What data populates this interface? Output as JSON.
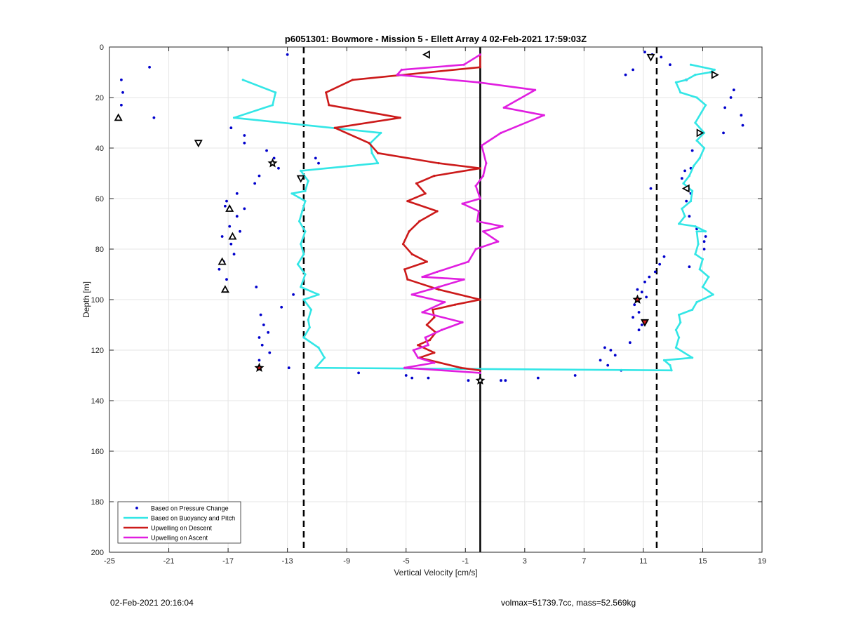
{
  "footer": {
    "timestamp": "02-Feb-2021 20:16:04",
    "mass_info": "volmax=51739.7cc, mass=52.569kg"
  },
  "colors": {
    "pressure": "#0000cc",
    "buoyancy": "#33e6e6",
    "descent": "#cc1a1a",
    "ascent": "#e01ee0",
    "grid": "#e6e6e6",
    "reference": "#000000"
  },
  "chart_data": {
    "type": "line",
    "title": "p6051301: Bowmore - Mission 5 - Ellett Array 4 02-Feb-2021 17:59:03Z",
    "xlabel": "Vertical Velocity [cm/s]",
    "ylabel": "Depth [m]",
    "xlim": [
      -25,
      19
    ],
    "ylim": [
      0,
      200
    ],
    "y_reversed": true,
    "grid": true,
    "legend_position": "bottom-left",
    "xticks": [
      -25,
      -21,
      -17,
      -13,
      -9,
      -5,
      -1,
      3,
      7,
      11,
      15,
      19
    ],
    "yticks": [
      0,
      20,
      40,
      60,
      80,
      100,
      120,
      140,
      160,
      180,
      200
    ],
    "reference_lines": [
      {
        "x": 0,
        "style": "solid"
      },
      {
        "x": -11.9,
        "style": "dashed"
      },
      {
        "x": 11.9,
        "style": "dashed"
      }
    ],
    "series": [
      {
        "name": "Based on Pressure Change",
        "kind": "scatter",
        "points": [
          [
            -13,
            3
          ],
          [
            -22.3,
            8
          ],
          [
            -24.2,
            13
          ],
          [
            -24.1,
            18
          ],
          [
            -24.2,
            23
          ],
          [
            -22,
            28
          ],
          [
            -16.8,
            32
          ],
          [
            -15.9,
            35
          ],
          [
            -15.9,
            38
          ],
          [
            -14.4,
            41
          ],
          [
            -13.9,
            44
          ],
          [
            -13.6,
            48
          ],
          [
            -14.9,
            51
          ],
          [
            -15.2,
            54
          ],
          [
            -16.4,
            58
          ],
          [
            -17.1,
            61
          ],
          [
            -17.2,
            63
          ],
          [
            -15.9,
            64
          ],
          [
            -16.4,
            67
          ],
          [
            -16.9,
            71
          ],
          [
            -17.4,
            75
          ],
          [
            -16.2,
            73
          ],
          [
            -16.8,
            78
          ],
          [
            -16.6,
            82
          ],
          [
            -17.3,
            85
          ],
          [
            -17.6,
            88
          ],
          [
            -17.1,
            92
          ],
          [
            -15.1,
            95
          ],
          [
            -12.6,
            98
          ],
          [
            -13.4,
            103
          ],
          [
            -14.8,
            106
          ],
          [
            -14.6,
            110
          ],
          [
            -14.3,
            113
          ],
          [
            -14.9,
            115
          ],
          [
            -14.7,
            118
          ],
          [
            -14.2,
            121
          ],
          [
            -14.9,
            124
          ],
          [
            -12.9,
            127
          ],
          [
            -11.1,
            44
          ],
          [
            -10.9,
            46
          ],
          [
            -8.2,
            129
          ],
          [
            -5,
            130
          ],
          [
            -4.6,
            131
          ],
          [
            -3.5,
            131
          ],
          [
            -0.8,
            132
          ],
          [
            1.4,
            132
          ],
          [
            1.7,
            132
          ],
          [
            3.9,
            131
          ],
          [
            6.4,
            130
          ],
          [
            8.4,
            119
          ],
          [
            8.1,
            124
          ],
          [
            8.8,
            120
          ],
          [
            9.1,
            122
          ],
          [
            8.6,
            126
          ],
          [
            9.5,
            128
          ],
          [
            9.8,
            11
          ],
          [
            10.3,
            9
          ],
          [
            11.1,
            2
          ],
          [
            11.6,
            3
          ],
          [
            12.2,
            4
          ],
          [
            12.8,
            7
          ],
          [
            11.5,
            56
          ],
          [
            12.4,
            83
          ],
          [
            12.1,
            86
          ],
          [
            11.8,
            89
          ],
          [
            11.4,
            91
          ],
          [
            11.1,
            93
          ],
          [
            10.6,
            96
          ],
          [
            10.9,
            97
          ],
          [
            11.2,
            99
          ],
          [
            10.4,
            102
          ],
          [
            10.7,
            105
          ],
          [
            10.3,
            107
          ],
          [
            10.9,
            110
          ],
          [
            10.7,
            112
          ],
          [
            10.1,
            117
          ],
          [
            13.9,
            13
          ],
          [
            17.1,
            17
          ],
          [
            16.9,
            20
          ],
          [
            16.5,
            24
          ],
          [
            17.6,
            27
          ],
          [
            17.7,
            31
          ],
          [
            16.4,
            34
          ],
          [
            14.3,
            41
          ],
          [
            14.2,
            48
          ],
          [
            13.6,
            52
          ],
          [
            13.8,
            49
          ],
          [
            14.2,
            58
          ],
          [
            13.9,
            61
          ],
          [
            14.1,
            67
          ],
          [
            14.6,
            72
          ],
          [
            15.2,
            75
          ],
          [
            15.1,
            77
          ],
          [
            15.1,
            80
          ],
          [
            14.1,
            87
          ]
        ]
      },
      {
        "name": "Based on Buoyancy and Pitch",
        "kind": "line",
        "points": [
          [
            -16,
            13
          ],
          [
            -13.8,
            18
          ],
          [
            -14,
            23
          ],
          [
            -16.6,
            28
          ],
          [
            -6.7,
            34
          ],
          [
            -7.4,
            38
          ],
          [
            -7.3,
            42
          ],
          [
            -6.9,
            46
          ],
          [
            -12.1,
            49
          ],
          [
            -11.6,
            53
          ],
          [
            -11.8,
            57
          ],
          [
            -12.7,
            58
          ],
          [
            -11.8,
            61
          ],
          [
            -12,
            65
          ],
          [
            -12.2,
            69
          ],
          [
            -11.8,
            73
          ],
          [
            -12.1,
            78
          ],
          [
            -11.9,
            82
          ],
          [
            -12.3,
            86
          ],
          [
            -11.8,
            90
          ],
          [
            -12.1,
            95
          ],
          [
            -10.9,
            98
          ],
          [
            -11.9,
            100
          ],
          [
            -11.4,
            104
          ],
          [
            -11.6,
            108
          ],
          [
            -11.5,
            111
          ],
          [
            -11.9,
            115
          ],
          [
            -10.9,
            119
          ],
          [
            -10.5,
            123
          ],
          [
            -11.1,
            127
          ],
          [
            12.9,
            128
          ],
          [
            12.8,
            126
          ],
          [
            12.4,
            124
          ],
          [
            14.3,
            123
          ],
          [
            13.2,
            119
          ],
          [
            13.4,
            115
          ],
          [
            13.2,
            112
          ],
          [
            13.5,
            109
          ],
          [
            13.4,
            106
          ],
          [
            14.3,
            104
          ],
          [
            14.6,
            101
          ],
          [
            15.7,
            98
          ],
          [
            15,
            95
          ],
          [
            15.4,
            91
          ],
          [
            14.8,
            88
          ],
          [
            15,
            84
          ],
          [
            14.5,
            82
          ],
          [
            14.7,
            78
          ],
          [
            14.6,
            73
          ],
          [
            15.2,
            73
          ],
          [
            14.5,
            71
          ],
          [
            13.4,
            70
          ],
          [
            13.8,
            67
          ],
          [
            13.6,
            64
          ],
          [
            14.2,
            61
          ],
          [
            14.3,
            57
          ],
          [
            13.7,
            54
          ],
          [
            14.1,
            51
          ],
          [
            14.4,
            47
          ],
          [
            14.8,
            44
          ],
          [
            15.1,
            40
          ],
          [
            14.6,
            37
          ],
          [
            15.1,
            34
          ],
          [
            14.5,
            30
          ],
          [
            15.2,
            23
          ],
          [
            14.6,
            20
          ],
          [
            13.5,
            18
          ],
          [
            13.2,
            14
          ],
          [
            13.9,
            13
          ],
          [
            14.5,
            11
          ],
          [
            15.5,
            10
          ],
          [
            15.8,
            9
          ],
          [
            14.2,
            7
          ]
        ]
      },
      {
        "name": "Upwelling on Descent",
        "kind": "line",
        "points": [
          [
            0,
            3
          ],
          [
            0,
            8
          ],
          [
            -8.6,
            13
          ],
          [
            -10.4,
            18
          ],
          [
            -10.2,
            23
          ],
          [
            -5.4,
            28
          ],
          [
            -9.8,
            32
          ],
          [
            -7.5,
            38
          ],
          [
            -6.9,
            42
          ],
          [
            -2.8,
            46
          ],
          [
            0,
            48
          ],
          [
            -3.1,
            51
          ],
          [
            -4.3,
            54
          ],
          [
            -3.7,
            58
          ],
          [
            -4.9,
            61
          ],
          [
            -2.9,
            65
          ],
          [
            -4.1,
            69
          ],
          [
            -4.8,
            73
          ],
          [
            -5.2,
            78
          ],
          [
            -4.6,
            82
          ],
          [
            -3.6,
            85
          ],
          [
            -5.1,
            88
          ],
          [
            -4.9,
            92
          ],
          [
            -2.8,
            96
          ],
          [
            0,
            100
          ],
          [
            -1.7,
            102
          ],
          [
            -3.2,
            104
          ],
          [
            -3.1,
            107
          ],
          [
            -3.6,
            110
          ],
          [
            -3,
            113
          ],
          [
            -3.4,
            116
          ],
          [
            -4.2,
            118
          ],
          [
            -3.1,
            121
          ],
          [
            -4.1,
            123
          ],
          [
            -1.3,
            127
          ],
          [
            0,
            128
          ]
        ]
      },
      {
        "name": "Upwelling on Ascent",
        "kind": "line",
        "points": [
          [
            0,
            3
          ],
          [
            -1.1,
            7
          ],
          [
            -5.3,
            9
          ],
          [
            -5.6,
            11
          ],
          [
            -0.1,
            14
          ],
          [
            3.7,
            17
          ],
          [
            1.6,
            24
          ],
          [
            4.3,
            27
          ],
          [
            1.4,
            34
          ],
          [
            0.1,
            39
          ],
          [
            0.4,
            46
          ],
          [
            0.2,
            51
          ],
          [
            -0.3,
            55
          ],
          [
            0,
            60
          ],
          [
            -1.2,
            62
          ],
          [
            -0.1,
            65
          ],
          [
            -0.2,
            69
          ],
          [
            1.5,
            71
          ],
          [
            0.2,
            73
          ],
          [
            1.2,
            77
          ],
          [
            -0.3,
            80
          ],
          [
            -0.8,
            85
          ],
          [
            -2.9,
            89
          ],
          [
            -3.9,
            91
          ],
          [
            -1.1,
            92
          ],
          [
            -2.8,
            95
          ],
          [
            -4.6,
            98
          ],
          [
            -2.4,
            101
          ],
          [
            -3.9,
            105
          ],
          [
            -1.2,
            109
          ],
          [
            -2.6,
            112
          ],
          [
            -3.7,
            115
          ],
          [
            -3.5,
            118
          ],
          [
            -4.5,
            120
          ],
          [
            -4.2,
            123
          ],
          [
            -3.1,
            125
          ],
          [
            -5.1,
            127
          ],
          [
            0,
            129
          ]
        ]
      }
    ],
    "markers": [
      {
        "shape": "triangle-left",
        "x": -3.6,
        "y": 3
      },
      {
        "shape": "triangle-down",
        "x": 11.5,
        "y": 4
      },
      {
        "shape": "triangle-right",
        "x": 15.8,
        "y": 11
      },
      {
        "shape": "triangle-up",
        "x": -24.4,
        "y": 28
      },
      {
        "shape": "triangle-down",
        "x": -19,
        "y": 38
      },
      {
        "shape": "triangle-right",
        "x": 14.8,
        "y": 34
      },
      {
        "shape": "star",
        "x": -14,
        "y": 46
      },
      {
        "shape": "triangle-down",
        "x": -12.1,
        "y": 52
      },
      {
        "shape": "triangle-left",
        "x": 13.9,
        "y": 56
      },
      {
        "shape": "triangle-up",
        "x": -16.9,
        "y": 64
      },
      {
        "shape": "triangle-up",
        "x": -16.7,
        "y": 75
      },
      {
        "shape": "triangle-up",
        "x": -17.4,
        "y": 85
      },
      {
        "shape": "triangle-up",
        "x": -17.2,
        "y": 96
      },
      {
        "shape": "star-red",
        "x": 10.6,
        "y": 100
      },
      {
        "shape": "triangle-down-red",
        "x": 11.1,
        "y": 109
      },
      {
        "shape": "star-red",
        "x": -14.9,
        "y": 127
      },
      {
        "shape": "star",
        "x": 0,
        "y": 132
      }
    ]
  }
}
